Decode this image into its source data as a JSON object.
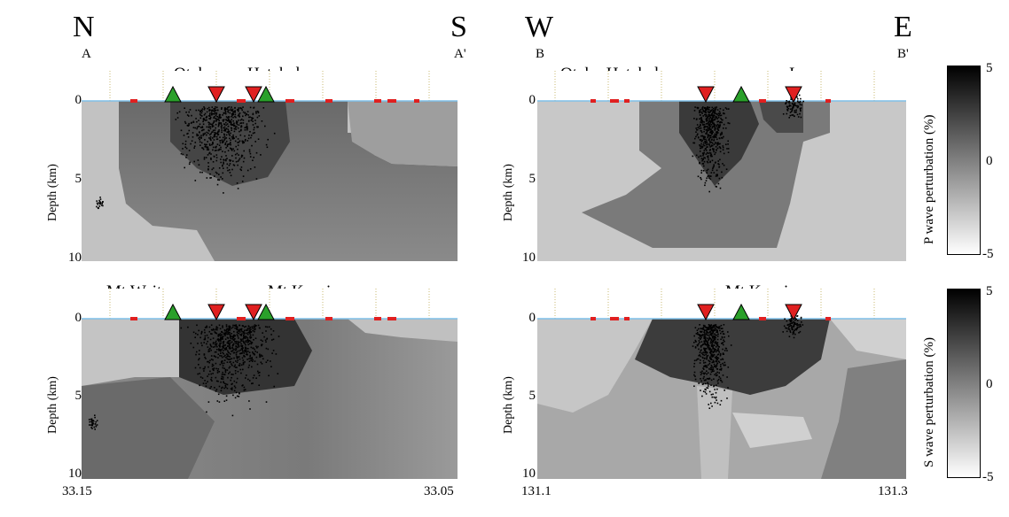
{
  "panels": [
    {
      "id": "top-left",
      "left_dir": "N",
      "right_dir": "S",
      "left_section": "A",
      "right_section": "A'",
      "ylabel": "Depth (km)",
      "yticks": [
        "0",
        "5",
        "10"
      ],
      "volcano_labels": [
        "Otake",
        "Hatchobaru"
      ]
    },
    {
      "id": "top-right",
      "left_dir": "W",
      "right_dir": "E",
      "left_section": "B",
      "right_section": "B'",
      "ylabel": "Depth (km)",
      "yticks": [
        "0",
        "5",
        "10"
      ],
      "volcano_labels": [
        "Otake-Hatchobaru",
        "Ioyama"
      ]
    },
    {
      "id": "bottom-left",
      "ylabel": "Depth (km)",
      "yticks": [
        "0",
        "5",
        "10"
      ],
      "volcano_labels": [
        "Mt.Waita",
        "Mt.Kuroiwa"
      ],
      "xticks": [
        "33.15",
        "33.05"
      ]
    },
    {
      "id": "bottom-right",
      "ylabel": "Depth (km)",
      "yticks": [
        "0",
        "5",
        "10"
      ],
      "volcano_labels": [
        "Mt.Kuroiwa"
      ],
      "xticks": [
        "131.1",
        "131.3"
      ]
    }
  ],
  "colorbars": [
    {
      "label": "P wave perturbation (%)",
      "ticks": [
        "5",
        "0",
        "-5"
      ]
    },
    {
      "label": "S wave perturbation (%)",
      "ticks": [
        "5",
        "0",
        "-5"
      ]
    }
  ],
  "colors": {
    "station_red": "#e02020",
    "volcano_green": "#2aa02a",
    "surface_line": "#7fbfe8",
    "grid_dotted": "#c8b870"
  }
}
